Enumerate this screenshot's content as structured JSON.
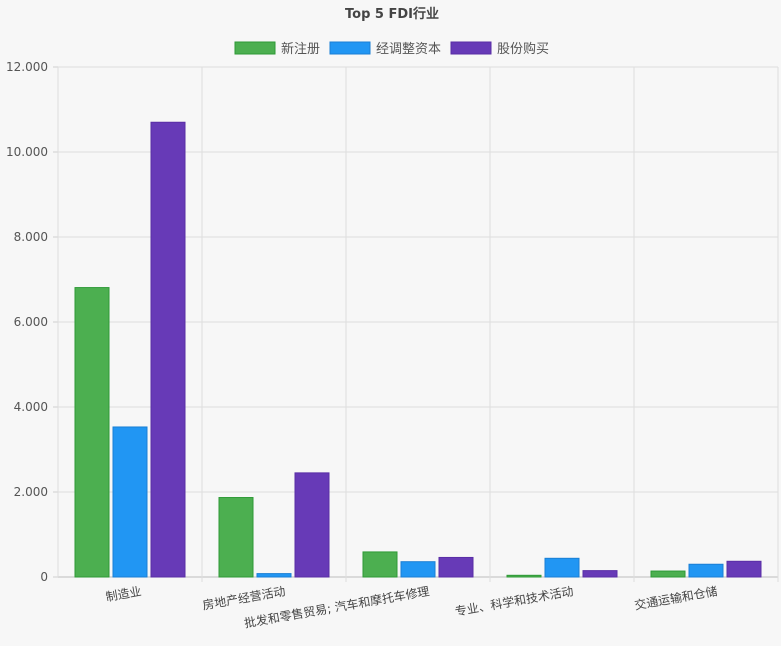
{
  "chart_data": {
    "type": "bar",
    "title": "Top 5 FDI行业",
    "categories": [
      "制造业",
      "房地产经营活动",
      "批发和零售贸易; 汽车和摩托车修理",
      "专业、科学和技术活动",
      "交通运输和仓储"
    ],
    "series": [
      {
        "name": "新注册",
        "color": "#4caf50",
        "stroke": "#2e9a36",
        "values": [
          6810,
          1870,
          590,
          40,
          140
        ]
      },
      {
        "name": "经调整资本",
        "color": "#2196f3",
        "stroke": "#1a7fd4",
        "values": [
          3530,
          80,
          360,
          440,
          300
        ]
      },
      {
        "name": "股份购买",
        "color": "#673ab7",
        "stroke": "#5a2ea6",
        "values": [
          10700,
          2450,
          460,
          150,
          370
        ]
      }
    ],
    "ylim": [
      0,
      12000
    ],
    "yticks": [
      "0",
      "2.000",
      "4.000",
      "6.000",
      "8.000",
      "10.000",
      "12.000"
    ],
    "grid": true,
    "legend": "top"
  }
}
